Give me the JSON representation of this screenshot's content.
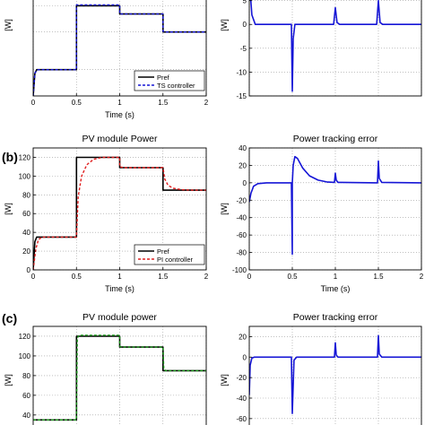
{
  "chart_data": [
    {
      "type": "line",
      "row": 0,
      "panel": "left",
      "ylabel": "[W]",
      "xlabel": "Time (s)",
      "xlim": [
        0,
        2
      ],
      "ylim": [
        0,
        130
      ],
      "yticks": [],
      "grid": true,
      "xticks": [
        "0",
        "0.5",
        "1",
        "1.5",
        "2"
      ],
      "legend": {
        "position": "bottom-right",
        "entries": [
          "Pref",
          "TS controller"
        ]
      },
      "series": [
        {
          "name": "Pref",
          "color": "#000000",
          "dash": "none",
          "x": [
            0,
            0.02,
            0.04,
            0.5,
            0.5,
            1.0,
            1.0,
            1.5,
            1.5,
            2.0
          ],
          "y": [
            0,
            30,
            35,
            35,
            120,
            120,
            109,
            109,
            85,
            85
          ]
        },
        {
          "name": "TS controller",
          "color": "#1515d6",
          "dash": "3,2",
          "x": [
            0,
            0.02,
            0.04,
            0.06,
            0.5,
            0.5,
            1.0,
            1.0,
            1.5,
            1.5,
            1.53,
            2.0
          ],
          "y": [
            0,
            30,
            34,
            35,
            35,
            121,
            121,
            109,
            109,
            86,
            85,
            85
          ]
        }
      ]
    },
    {
      "type": "line",
      "row": 0,
      "panel": "right",
      "ylabel": "[W]",
      "xlabel": "",
      "xlim": [
        0,
        2
      ],
      "ylim": [
        -15,
        5.5
      ],
      "yticks": [
        "5",
        "0",
        "-5",
        "-10",
        "-15"
      ],
      "xticks": [],
      "grid": true,
      "series": [
        {
          "name": "",
          "color": "#1515d6",
          "dash": "none",
          "x": [
            0,
            0.01,
            0.03,
            0.07,
            0.3,
            0.49,
            0.5,
            0.51,
            0.53,
            0.6,
            0.98,
            1.0,
            1.02,
            1.05,
            1.48,
            1.5,
            1.52,
            1.55,
            2.0
          ],
          "y": [
            5,
            7,
            2,
            0,
            0,
            0,
            -14,
            -3,
            0,
            0,
            0,
            3.5,
            0.4,
            0,
            0,
            5,
            0.4,
            0,
            0
          ]
        }
      ]
    },
    {
      "type": "line",
      "row": 1,
      "panel": "left",
      "title": "PV module Power",
      "ylabel": "[W]",
      "xlabel": "Time (s)",
      "xlim": [
        0,
        2
      ],
      "ylim": [
        0,
        130
      ],
      "yticks": [
        "0",
        "20",
        "40",
        "60",
        "80",
        "100",
        "120"
      ],
      "xticks": [
        "0",
        "0.5",
        "1",
        "1.5",
        "2"
      ],
      "grid": true,
      "legend": {
        "position": "bottom-right",
        "entries": [
          "Pref",
          "PI controller"
        ]
      },
      "series": [
        {
          "name": "Pref",
          "color": "#000000",
          "dash": "none",
          "x": [
            0,
            0.02,
            0.04,
            0.5,
            0.5,
            1.0,
            1.0,
            1.5,
            1.5,
            2.0
          ],
          "y": [
            0,
            30,
            35,
            35,
            120,
            120,
            109,
            109,
            85,
            85
          ]
        },
        {
          "name": "PI controller",
          "color": "#e02020",
          "dash": "3,2",
          "x": [
            0,
            0.03,
            0.06,
            0.1,
            0.5,
            0.52,
            0.56,
            0.62,
            0.7,
            0.8,
            0.9,
            1.0,
            1.0,
            1.02,
            1.05,
            1.1,
            1.5,
            1.52,
            1.56,
            1.62,
            1.72,
            1.85,
            2.0
          ],
          "y": [
            0,
            22,
            32,
            35,
            35,
            78,
            100,
            112,
            118,
            120,
            120,
            120,
            110,
            109.5,
            109,
            109,
            109,
            97,
            90,
            87,
            85.5,
            85,
            85
          ]
        }
      ]
    },
    {
      "type": "line",
      "row": 1,
      "panel": "right",
      "title": "Power tracking error",
      "ylabel": "[W]",
      "xlabel": "Time (s)",
      "xlim": [
        0,
        2
      ],
      "ylim": [
        -100,
        40
      ],
      "yticks": [
        "40",
        "20",
        "0",
        "-20",
        "-40",
        "-60",
        "-80",
        "-100"
      ],
      "xticks": [
        "0",
        "0.5",
        "1",
        "1.5",
        "2"
      ],
      "grid": true,
      "series": [
        {
          "name": "",
          "color": "#1515d6",
          "dash": "none",
          "x": [
            0,
            0.02,
            0.05,
            0.1,
            0.2,
            0.49,
            0.5,
            0.5,
            0.51,
            0.53,
            0.56,
            0.62,
            0.7,
            0.8,
            0.9,
            0.99,
            1.0,
            1.01,
            1.03,
            1.49,
            1.5,
            1.51,
            1.54,
            2.0
          ],
          "y": [
            -22,
            -12,
            -4,
            -1,
            0,
            0,
            -82,
            0,
            20,
            30,
            28,
            17,
            8,
            3,
            1,
            0.5,
            11,
            3,
            0.5,
            0,
            25,
            5,
            0.5,
            0
          ]
        }
      ]
    },
    {
      "type": "line",
      "row": 2,
      "panel": "left",
      "title": "PV module power",
      "ylabel": "[W]",
      "xlabel": "",
      "xlim": [
        0,
        2
      ],
      "ylim": [
        28,
        130
      ],
      "yticks": [
        "40",
        "60",
        "80",
        "100",
        "120"
      ],
      "xticks": [],
      "grid": true,
      "series": [
        {
          "name": "",
          "color": "#000000",
          "dash": "none",
          "x": [
            0,
            0.5,
            0.5,
            1.0,
            1.0,
            1.5,
            1.5,
            2.0
          ],
          "y": [
            35,
            35,
            120,
            120,
            109,
            109,
            85,
            85
          ]
        },
        {
          "name": "",
          "color": "#1a9a1a",
          "dash": "3,2",
          "x": [
            0,
            0.5,
            0.51,
            0.53,
            1.0,
            1.0,
            1.02,
            1.5,
            1.51,
            1.53,
            2.0
          ],
          "y": [
            35,
            35,
            118,
            121,
            121,
            110,
            109,
            109,
            87,
            85,
            85
          ]
        }
      ]
    },
    {
      "type": "line",
      "row": 2,
      "panel": "right",
      "title": "Power tracking error",
      "ylabel": "[W]",
      "xlabel": "",
      "xlim": [
        0,
        2
      ],
      "ylim": [
        -68,
        30
      ],
      "yticks": [
        "20",
        "0",
        "-20",
        "-40",
        "-60"
      ],
      "xticks": [],
      "grid": true,
      "series": [
        {
          "name": "",
          "color": "#1515d6",
          "dash": "none",
          "x": [
            0,
            0.01,
            0.03,
            0.06,
            0.1,
            0.49,
            0.5,
            0.52,
            0.55,
            0.99,
            1.0,
            1.01,
            1.03,
            1.49,
            1.5,
            1.51,
            1.54,
            2.0
          ],
          "y": [
            -37,
            -8,
            -1,
            0,
            0,
            0,
            -55,
            -3,
            0,
            0,
            14,
            2,
            0,
            0,
            21,
            3,
            0,
            0
          ]
        }
      ]
    }
  ],
  "panel_labels": [
    "(b)",
    "(c)"
  ]
}
